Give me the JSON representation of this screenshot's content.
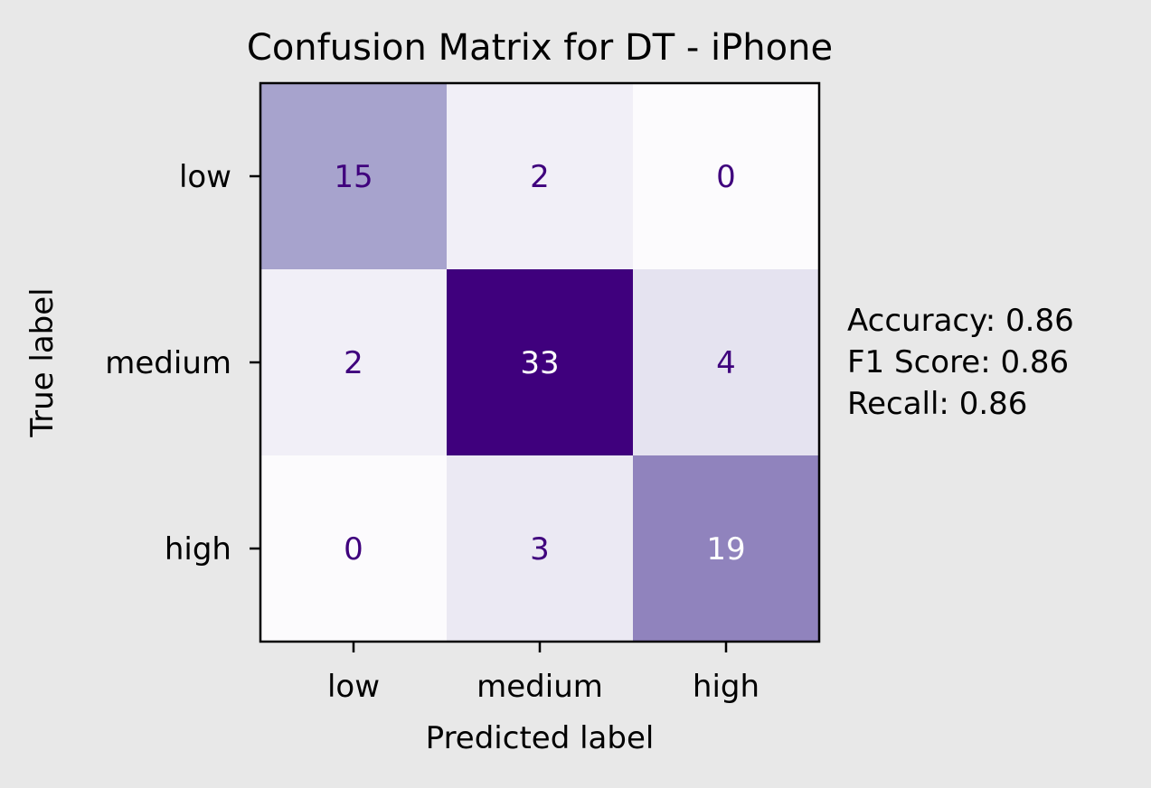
{
  "chart_data": {
    "type": "heatmap",
    "title": "Confusion Matrix for DT - iPhone",
    "xlabel": "Predicted label",
    "ylabel": "True label",
    "x_categories": [
      "low",
      "medium",
      "high"
    ],
    "y_categories": [
      "low",
      "medium",
      "high"
    ],
    "values": [
      [
        15,
        2,
        0
      ],
      [
        2,
        33,
        4
      ],
      [
        0,
        3,
        19
      ]
    ],
    "colormap": "Purples",
    "vmin": 0,
    "vmax": 33,
    "colorbar": false,
    "grid": false,
    "annotations": [
      "Accuracy: 0.86",
      "F1 Score: 0.86",
      "Recall: 0.86"
    ]
  },
  "colors": {
    "background": "#e8e8e8",
    "cmap_low": "#fcfbfd",
    "cmap_mid": "#9e9ac8",
    "cmap_high": "#3f007d",
    "text_on_light": "#3f007d",
    "text_on_dark": "#ffffff"
  }
}
